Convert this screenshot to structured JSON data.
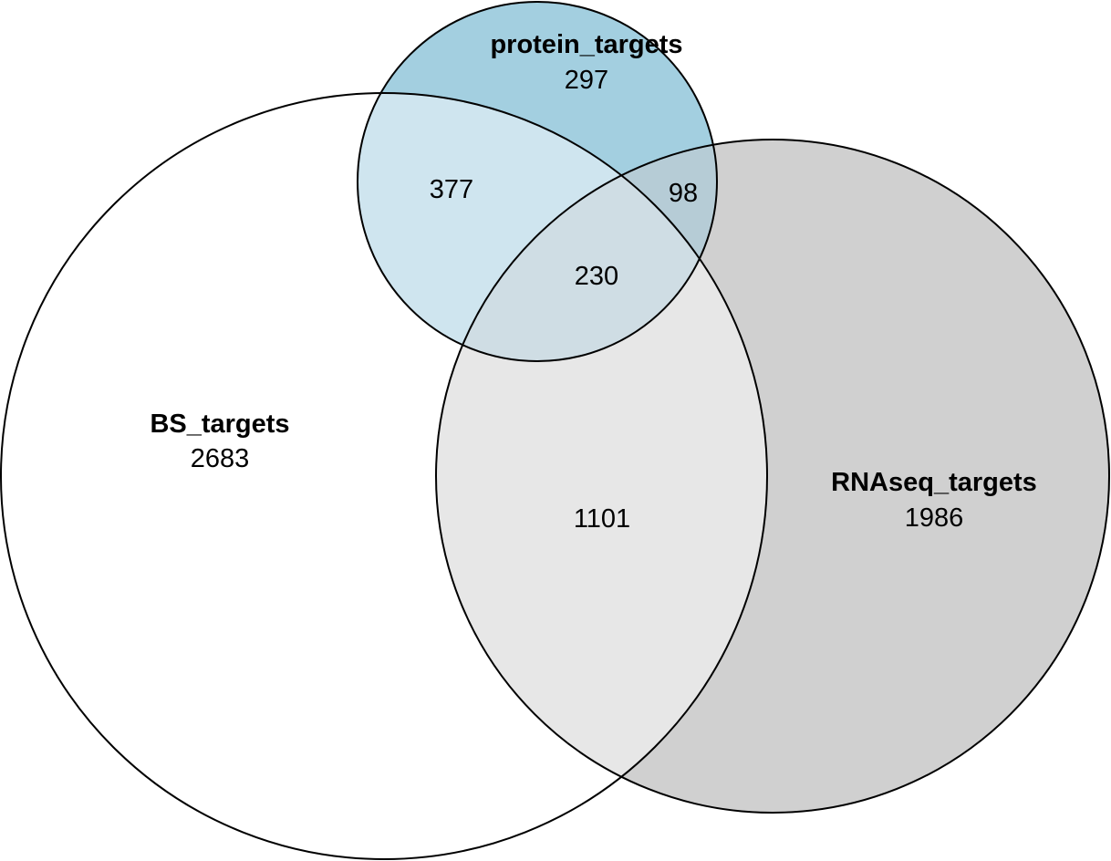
{
  "sets": [
    {
      "key": "bs",
      "name": "BS_targets",
      "total_label": "2683",
      "color": "#ffffff"
    },
    {
      "key": "protein",
      "name": "protein_targets",
      "total_label": "297",
      "color": "#a3cfe0"
    },
    {
      "key": "rnaseq",
      "name": "RNAseq_targets",
      "total_label": "1986",
      "color": "#d0d0d0"
    }
  ],
  "regions": {
    "bs_protein": "377",
    "protein_rnaseq": "98",
    "all_three": "230",
    "bs_rnaseq": "1101"
  },
  "region_colors": {
    "bs_protein": "#cfe5ef",
    "protein_rnaseq": "#b6ccd6",
    "all_three": "#cfdde4",
    "bs_rnaseq": "#e7e7e7"
  },
  "outline_color": "#000000"
}
